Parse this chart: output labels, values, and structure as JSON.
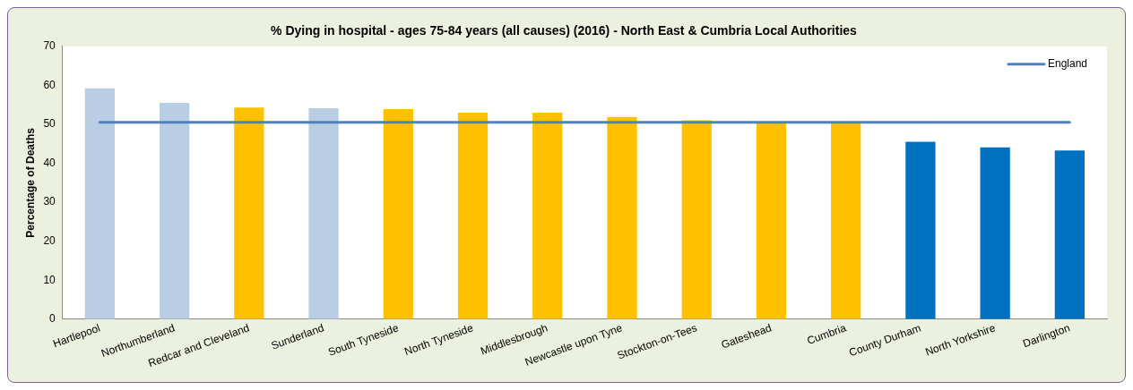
{
  "chart_data": {
    "type": "bar",
    "title": "% Dying in hospital - ages 75-84 years (all causes) (2016) - North East & Cumbria Local Authorities",
    "ylabel": "Percentage of Deaths",
    "categories": [
      "Hartlepool",
      "Northumberland",
      "Redcar and Cleveland",
      "Sunderland",
      "South Tyneside",
      "North Tyneside",
      "Middlesbrough",
      "Newcastle upon Tyne",
      "Stockton-on-Tees",
      "Gateshead",
      "Cumbria",
      "County Durham",
      "North Yorkshire",
      "Darlington"
    ],
    "series": [
      {
        "values": [
          59.2,
          55.5,
          54.3,
          54.1,
          53.9,
          53.0,
          53.0,
          51.9,
          51.0,
          50.4,
          50.3,
          45.5,
          44.1,
          43.3
        ],
        "colors": [
          "#b9cde5",
          "#b9cde5",
          "#ffc000",
          "#b9cde5",
          "#ffc000",
          "#ffc000",
          "#ffc000",
          "#ffc000",
          "#ffc000",
          "#ffc000",
          "#ffc000",
          "#0070c0",
          "#0070c0",
          "#0070c0"
        ]
      },
      {
        "type": "line",
        "name": "England",
        "color": "#4f81bd",
        "values": [
          50.5,
          50.5,
          50.5,
          50.5,
          50.5,
          50.5,
          50.5,
          50.5,
          50.5,
          50.5,
          50.5,
          50.5,
          50.5,
          50.5
        ]
      }
    ],
    "ylim": [
      0,
      70
    ],
    "yticks": [
      0,
      10,
      20,
      30,
      40,
      50,
      60,
      70
    ],
    "grid": false,
    "legend": "top right",
    "marker": "none"
  }
}
